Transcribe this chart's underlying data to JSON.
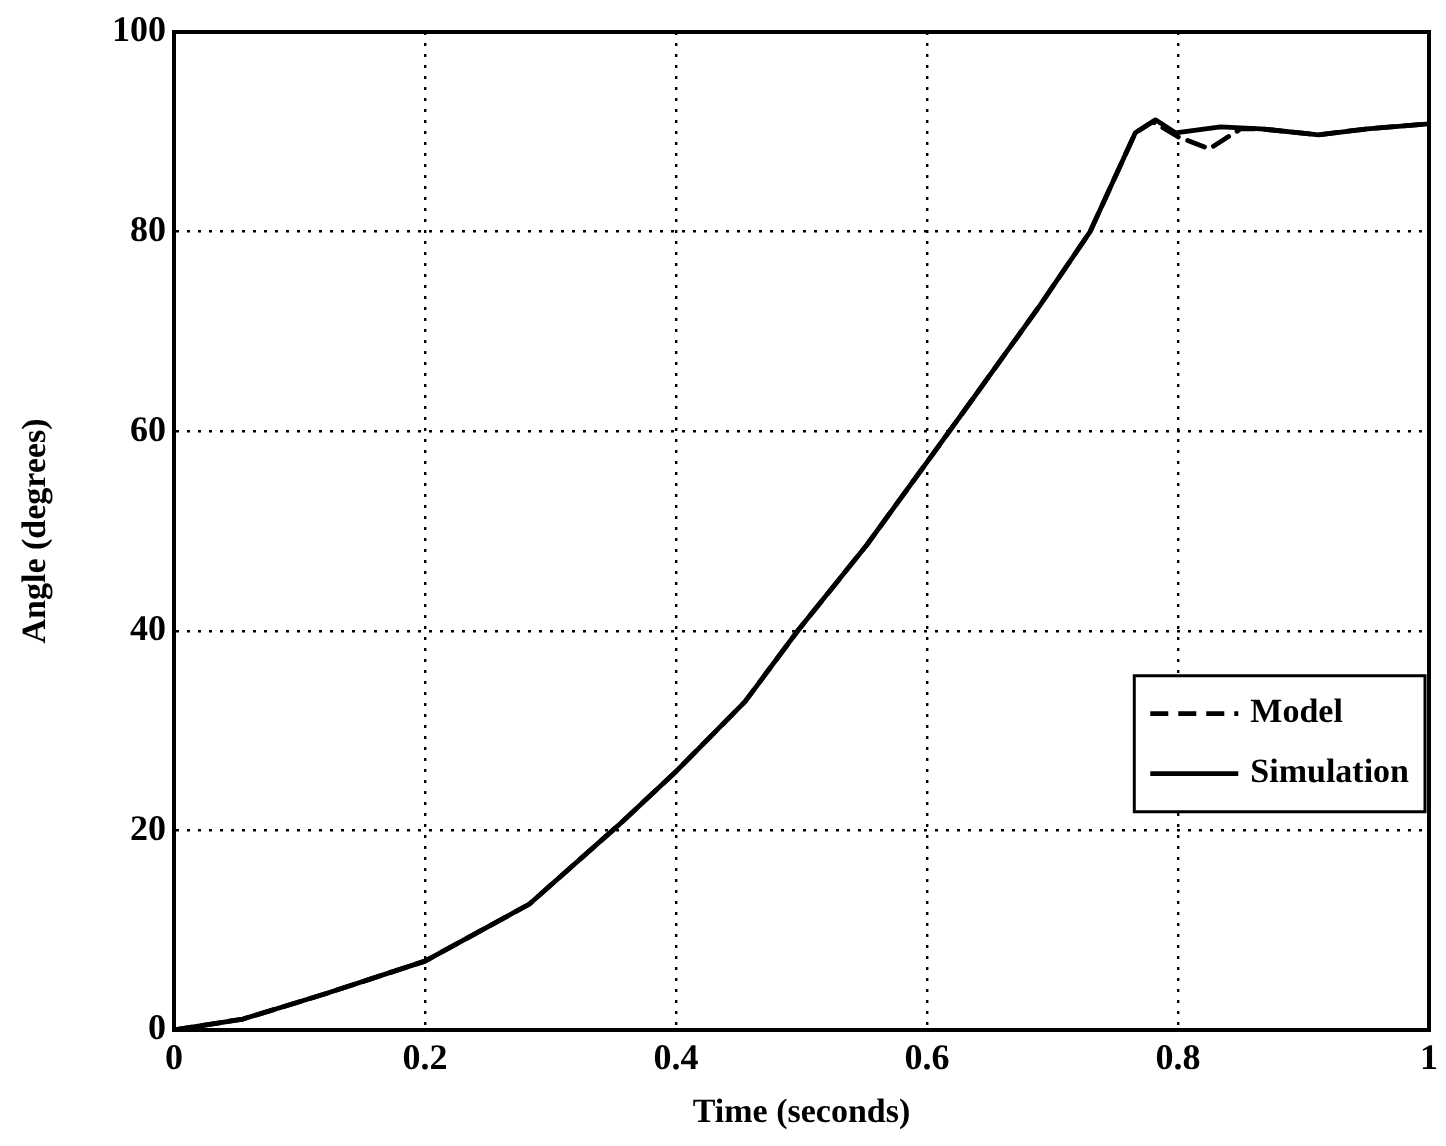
{
  "chart_data": {
    "type": "line",
    "xlabel": "Time (seconds)",
    "ylabel": "Angle (degrees)",
    "xlim": [
      0,
      1
    ],
    "ylim": [
      0,
      100
    ],
    "xticks": [
      0,
      0.2,
      0.4,
      0.6,
      0.8,
      1
    ],
    "yticks": [
      0,
      20,
      40,
      60,
      80,
      100
    ],
    "grid": true,
    "legend": "bottom right",
    "marker": "none",
    "series": [
      {
        "name": "Model",
        "color": "#000000",
        "line_style": "dashed",
        "x": [
          0,
          0.055,
          0.12,
          0.2,
          0.283,
          0.354,
          0.4,
          0.455,
          0.497,
          0.552,
          0.6,
          0.638,
          0.69,
          0.73,
          0.766,
          0.78,
          0.8,
          0.825,
          0.85,
          0.866,
          0.912,
          0.951,
          1
        ],
        "values": [
          0,
          1.1,
          3.6,
          6.9,
          12.6,
          20.5,
          25.9,
          32.9,
          40,
          48.6,
          56.9,
          63.5,
          72.6,
          80,
          89.9,
          91,
          89.5,
          88.3,
          90.3,
          90.3,
          89.7,
          90.3,
          90.8
        ]
      },
      {
        "name": "Simulation",
        "color": "#000000",
        "line_style": "solid",
        "x": [
          0,
          0.055,
          0.12,
          0.2,
          0.283,
          0.354,
          0.4,
          0.455,
          0.497,
          0.552,
          0.6,
          0.638,
          0.69,
          0.73,
          0.766,
          0.782,
          0.798,
          0.834,
          0.866,
          0.912,
          0.951,
          1
        ],
        "values": [
          0,
          1.1,
          3.6,
          6.9,
          12.6,
          20.5,
          25.9,
          32.9,
          40,
          48.6,
          56.9,
          63.5,
          72.6,
          80,
          89.9,
          91.2,
          89.9,
          90.5,
          90.3,
          89.7,
          90.3,
          90.8
        ]
      }
    ]
  }
}
